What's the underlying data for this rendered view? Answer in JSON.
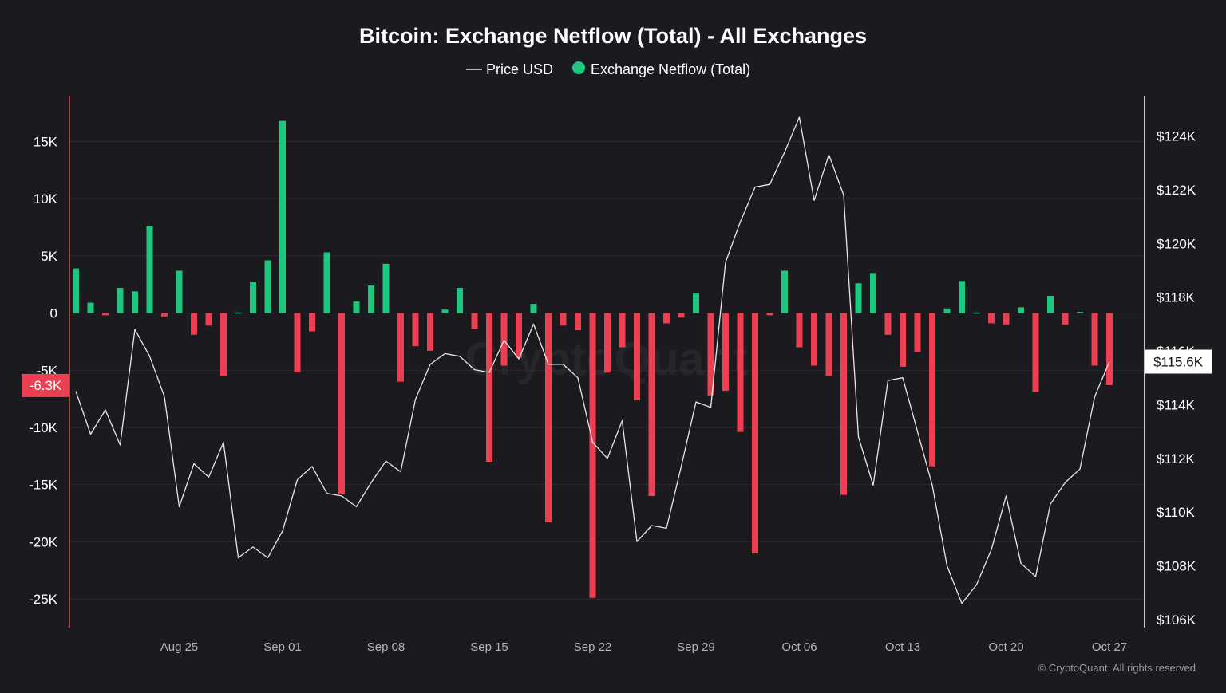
{
  "chart_data": {
    "type": "bar+line",
    "title": "Bitcoin: Exchange Netflow (Total) - All Exchanges",
    "legend": {
      "position": "top-center",
      "items": [
        {
          "name": "Price USD",
          "marker": "line"
        },
        {
          "name": "Exchange Netflow (Total)",
          "marker": "dot"
        }
      ]
    },
    "x_start_date": "Aug 18",
    "x_tick_labels": [
      {
        "label": "Aug 25",
        "index": 7
      },
      {
        "label": "Sep 01",
        "index": 14
      },
      {
        "label": "Sep 08",
        "index": 21
      },
      {
        "label": "Sep 15",
        "index": 28
      },
      {
        "label": "Sep 22",
        "index": 35
      },
      {
        "label": "Sep 29",
        "index": 42
      },
      {
        "label": "Oct 06",
        "index": 49
      },
      {
        "label": "Oct 13",
        "index": 56
      },
      {
        "label": "Oct 20",
        "index": 63
      },
      {
        "label": "Oct 27",
        "index": 70
      }
    ],
    "left_axis": {
      "name": "Exchange Netflow (Total)",
      "ylim": [
        -27500,
        19000
      ],
      "ticks": [
        15000,
        10000,
        5000,
        0,
        -5000,
        -10000,
        -15000,
        -20000,
        -25000
      ],
      "tick_labels": [
        "15K",
        "10K",
        "5K",
        "0",
        "-5K",
        "-10K",
        "-15K",
        "-20K",
        "-25K"
      ],
      "current_value_label": "-6.3K",
      "current_value": -6300
    },
    "right_axis": {
      "name": "Price USD",
      "ylim": [
        105700,
        125500
      ],
      "ticks": [
        106000,
        108000,
        110000,
        112000,
        114000,
        116000,
        118000,
        120000,
        122000,
        124000
      ],
      "tick_labels": [
        "$106K",
        "$108K",
        "$110K",
        "$112K",
        "$114K",
        "$116K",
        "$118K",
        "$120K",
        "$122K",
        "$124K"
      ],
      "current_value_label": "$115.6K",
      "current_value": 115600
    },
    "series": [
      {
        "name": "Exchange Netflow (Total)",
        "type": "bar",
        "positive_color": "#1ec77f",
        "negative_color": "#ee3f52",
        "values": [
          3900,
          900,
          -200,
          2200,
          1900,
          7600,
          -300,
          3700,
          -1900,
          -1100,
          -5500,
          0,
          2700,
          4600,
          16800,
          -5200,
          -1600,
          5300,
          -15800,
          1000,
          2400,
          4300,
          -6000,
          -2900,
          -3300,
          300,
          2200,
          -1400,
          -13000,
          -4600,
          -3900,
          800,
          -18300,
          -1100,
          -1500,
          -24900,
          -5200,
          -3000,
          -7600,
          -16000,
          -900,
          -400,
          1700,
          -7200,
          -6800,
          -10400,
          -21000,
          -200,
          3700,
          -3000,
          -4600,
          -5500,
          -15900,
          2600,
          3500,
          -1900,
          -4700,
          -3400,
          -13400,
          400,
          2800,
          0,
          -900,
          -1000,
          500,
          -6900,
          1500,
          -1000,
          100,
          -4600,
          -6300
        ]
      },
      {
        "name": "Price USD",
        "type": "line",
        "color": "#e8e8e8",
        "values": [
          114500,
          112900,
          113800,
          112500,
          116800,
          115800,
          114300,
          110200,
          111800,
          111300,
          112600,
          108300,
          108700,
          108300,
          109300,
          111200,
          111700,
          110700,
          110600,
          110200,
          111100,
          111900,
          111500,
          114200,
          115500,
          115900,
          115800,
          115300,
          115200,
          116400,
          115700,
          117000,
          115500,
          115500,
          115000,
          112600,
          112000,
          113400,
          108900,
          109500,
          109400,
          111700,
          114100,
          113900,
          119300,
          120800,
          122100,
          122200,
          123400,
          124700,
          121600,
          123300,
          121800,
          112800,
          111000,
          114900,
          115000,
          113000,
          111000,
          108000,
          106600,
          107300,
          108600,
          110600,
          108100,
          107600,
          110300,
          111100,
          111600,
          114300,
          115600
        ]
      }
    ],
    "watermark": "CryptoQuant",
    "credit": "© CryptoQuant. All rights reserved"
  }
}
